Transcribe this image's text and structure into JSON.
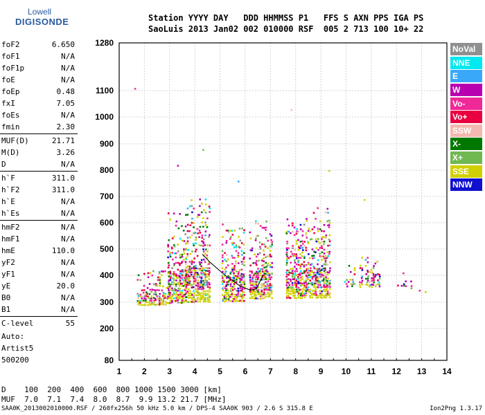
{
  "logo": {
    "line1": "Lowell",
    "line2": "DIGISONDE"
  },
  "header": {
    "row1": "Station YYYY DAY   DDD HHMMSS P1   FFS S AXN PPS IGA PS",
    "row2": "SaoLuis 2013 Jan02 002 010000 RSF  005 2 713 100 10+ 22"
  },
  "params": [
    {
      "group": [
        {
          "k": "foF2",
          "v": "6.650"
        },
        {
          "k": "foF1",
          "v": "N/A"
        },
        {
          "k": "foF1p",
          "v": "N/A"
        },
        {
          "k": "foE",
          "v": "N/A"
        },
        {
          "k": "foEp",
          "v": "0.48"
        },
        {
          "k": "fxI",
          "v": "7.05"
        },
        {
          "k": "foEs",
          "v": "N/A"
        },
        {
          "k": "fmin",
          "v": "2.30"
        }
      ]
    },
    {
      "group": [
        {
          "k": "MUF(D)",
          "v": "21.71"
        },
        {
          "k": "M(D)",
          "v": "3.26"
        },
        {
          "k": "D",
          "v": "N/A"
        }
      ]
    },
    {
      "group": [
        {
          "k": "h`F",
          "v": "311.0"
        },
        {
          "k": "h`F2",
          "v": "311.0"
        },
        {
          "k": "h`E",
          "v": "N/A"
        },
        {
          "k": "h`Es",
          "v": "N/A"
        }
      ]
    },
    {
      "group": [
        {
          "k": "hmF2",
          "v": "N/A"
        },
        {
          "k": "hmF1",
          "v": "N/A"
        },
        {
          "k": "hmE",
          "v": "110.0"
        },
        {
          "k": "yF2",
          "v": "N/A"
        },
        {
          "k": "yF1",
          "v": "N/A"
        },
        {
          "k": "yE",
          "v": "20.0"
        },
        {
          "k": "B0",
          "v": "N/A"
        },
        {
          "k": "B1",
          "v": "N/A"
        }
      ]
    },
    {
      "group": [
        {
          "k": "C-level",
          "v": "55"
        }
      ]
    }
  ],
  "auto": [
    "Auto:",
    "Artist5",
    "500200"
  ],
  "legend": [
    {
      "label": "NoVal",
      "color": "#909090"
    },
    {
      "label": "NNE",
      "color": "#00e8f0"
    },
    {
      "label": "E",
      "color": "#3aa8f8"
    },
    {
      "label": "W",
      "color": "#b800b0"
    },
    {
      "label": "Vo-",
      "color": "#f02898"
    },
    {
      "label": "Vo+",
      "color": "#e80040"
    },
    {
      "label": "SSW",
      "color": "#f4b8b0"
    },
    {
      "label": "X-",
      "color": "#007800"
    },
    {
      "label": "X+",
      "color": "#70b850"
    },
    {
      "label": "SSE",
      "color": "#d0d000"
    },
    {
      "label": "NNW",
      "color": "#1010d0"
    }
  ],
  "distance_table": {
    "row1": "D    100  200  400  600  800 1000 1500 3000 [km]",
    "row2": "MUF  7.0  7.1  7.4  8.0  8.7  9.9 13.2 21.7 [MHz]"
  },
  "footer": {
    "left": "SAA0K_2013002010000.RSF / 260fx256h 50 kHz 5.0 km / DPS-4 SAA0K 903 / 2.6 S 315.8 E",
    "right": "Ion2Png 1.3.17"
  },
  "chart_data": {
    "type": "scatter",
    "x_ticks": [
      1,
      2,
      3,
      4,
      5,
      6,
      7,
      8,
      9,
      10,
      11,
      12,
      13,
      14
    ],
    "y_ticks": [
      80,
      200,
      300,
      400,
      500,
      600,
      700,
      800,
      900,
      1000,
      1100,
      1280
    ],
    "xlim": [
      1,
      14
    ],
    "ylim": [
      80,
      1280
    ],
    "y_scale": "compressed-upper",
    "grid": true,
    "legend_position": "right",
    "clusters": [
      {
        "x": [
          1.7,
          2.9
        ],
        "y": [
          290,
          420
        ],
        "density": 0.55
      },
      {
        "x": [
          2.9,
          3.6
        ],
        "y": [
          300,
          640
        ],
        "density": 0.6
      },
      {
        "x": [
          3.6,
          4.6
        ],
        "y": [
          300,
          700
        ],
        "density": 0.6
      },
      {
        "x": [
          5.05,
          5.9
        ],
        "y": [
          310,
          600
        ],
        "density": 0.6
      },
      {
        "x": [
          6.15,
          7.05
        ],
        "y": [
          315,
          610
        ],
        "density": 0.6
      },
      {
        "x": [
          7.6,
          8.55
        ],
        "y": [
          320,
          620
        ],
        "density": 0.6
      },
      {
        "x": [
          8.6,
          9.3
        ],
        "y": [
          320,
          660
        ],
        "density": 0.6
      },
      {
        "x": [
          9.9,
          10.3
        ],
        "y": [
          360,
          450
        ],
        "density": 0.4
      },
      {
        "x": [
          10.5,
          11.3
        ],
        "y": [
          360,
          480
        ],
        "density": 0.5
      },
      {
        "x": [
          12.0,
          12.6
        ],
        "y": [
          350,
          420
        ],
        "density": 0.15
      },
      {
        "x": [
          12.8,
          13.2
        ],
        "y": [
          340,
          380
        ],
        "density": 0.1
      }
    ],
    "trace": [
      [
        4.3,
        480
      ],
      [
        4.6,
        450
      ],
      [
        5.2,
        400
      ],
      [
        5.8,
        360
      ],
      [
        6.2,
        345
      ],
      [
        6.45,
        350
      ],
      [
        6.7,
        400
      ]
    ],
    "outliers": [
      [
        1.6,
        1110
      ],
      [
        7.8,
        1030
      ],
      [
        5.7,
        760
      ],
      [
        9.3,
        800
      ],
      [
        10.7,
        690
      ],
      [
        4.3,
        880
      ],
      [
        3.3,
        820
      ]
    ]
  }
}
